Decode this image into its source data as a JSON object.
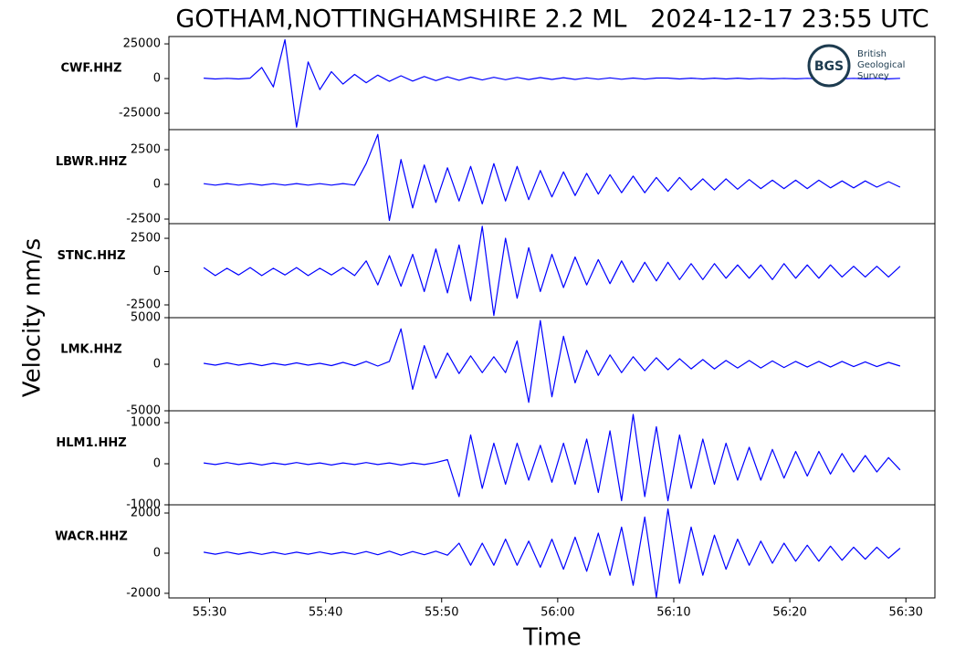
{
  "chart_data": {
    "type": "line",
    "title": "GOTHAM,NOTTINGHAMSHIRE 2.2 ML   2024-12-17 23:55 UTC",
    "xlabel": "Time",
    "ylabel": "Velocity nm/s",
    "color": "#0000ff",
    "xlim": [
      26.5,
      92.5
    ],
    "xticks": [
      {
        "value": 30,
        "label": "55:30"
      },
      {
        "value": 40,
        "label": "55:40"
      },
      {
        "value": 50,
        "label": "55:50"
      },
      {
        "value": 60,
        "label": "56:00"
      },
      {
        "value": 70,
        "label": "56:10"
      },
      {
        "value": 80,
        "label": "56:20"
      },
      {
        "value": 90,
        "label": "56:30"
      }
    ],
    "x": [
      29.5,
      30.5,
      31.5,
      32.5,
      33.5,
      34.5,
      35.5,
      36.5,
      37.5,
      38.5,
      39.5,
      40.5,
      41.5,
      42.5,
      43.5,
      44.5,
      45.5,
      46.5,
      47.5,
      48.5,
      49.5,
      50.5,
      51.5,
      52.5,
      53.5,
      54.5,
      55.5,
      56.5,
      57.5,
      58.5,
      59.5,
      60.5,
      61.5,
      62.5,
      63.5,
      64.5,
      65.5,
      66.5,
      67.5,
      68.5,
      69.5,
      70.5,
      71.5,
      72.5,
      73.5,
      74.5,
      75.5,
      76.5,
      77.5,
      78.5,
      79.5,
      80.5,
      81.5,
      82.5,
      83.5,
      84.5,
      85.5,
      86.5,
      87.5,
      88.5,
      89.5
    ],
    "panels": [
      {
        "name": "CWF.HHZ",
        "ylim": [
          -36800,
          30300
        ],
        "yticks": [
          -25000,
          0,
          25000
        ],
        "values": [
          300,
          -300,
          200,
          -300,
          300,
          8000,
          -6000,
          28000,
          -35000,
          12000,
          -8000,
          5000,
          -4000,
          3000,
          -3000,
          2500,
          -2000,
          2000,
          -1800,
          1500,
          -1500,
          1200,
          -1200,
          1000,
          -1000,
          900,
          -800,
          800,
          -700,
          700,
          -600,
          600,
          -600,
          500,
          -500,
          500,
          -500,
          400,
          -400,
          400,
          400,
          -300,
          300,
          -300,
          300,
          -300,
          300,
          -300,
          200,
          -200,
          200,
          -200,
          200,
          -200,
          200,
          -200,
          200,
          -200,
          200,
          -200,
          200
        ]
      },
      {
        "name": "LBWR.HHZ",
        "ylim": [
          -2830,
          3950
        ],
        "yticks": [
          -2500,
          0,
          2500
        ],
        "values": [
          50,
          -50,
          60,
          -50,
          50,
          -60,
          50,
          -50,
          60,
          -50,
          50,
          -50,
          60,
          -50,
          1500,
          3600,
          -2600,
          1800,
          -1700,
          1400,
          -1300,
          1200,
          -1200,
          1300,
          -1400,
          1500,
          -1200,
          1300,
          -1100,
          1000,
          -900,
          900,
          -800,
          800,
          -700,
          700,
          -600,
          600,
          -600,
          500,
          -500,
          500,
          -400,
          400,
          -400,
          400,
          -350,
          350,
          -300,
          300,
          -300,
          300,
          -300,
          300,
          -250,
          250,
          -250,
          250,
          -200,
          200,
          -200
        ]
      },
      {
        "name": "STNC.HHZ",
        "ylim": [
          -3460,
          3600
        ],
        "yticks": [
          -2500,
          0,
          2500
        ],
        "values": [
          300,
          -300,
          250,
          -250,
          300,
          -300,
          250,
          -250,
          300,
          -300,
          250,
          -250,
          300,
          -300,
          800,
          -1000,
          1200,
          -1100,
          1300,
          -1500,
          1700,
          -1600,
          2000,
          -2200,
          3400,
          -3300,
          2500,
          -2000,
          1800,
          -1500,
          1300,
          -1200,
          1100,
          -1000,
          900,
          -900,
          800,
          -800,
          700,
          -700,
          700,
          -600,
          600,
          -600,
          600,
          -500,
          500,
          -500,
          500,
          -600,
          600,
          -500,
          500,
          -500,
          500,
          -400,
          400,
          -400,
          400,
          -400,
          400
        ]
      },
      {
        "name": "LMK.HHZ",
        "ylim": [
          -5000,
          5000
        ],
        "yticks": [
          -5000,
          0,
          5000
        ],
        "values": [
          100,
          -100,
          150,
          -100,
          100,
          -150,
          100,
          -100,
          150,
          -100,
          100,
          -150,
          200,
          -150,
          300,
          -200,
          300,
          3800,
          -2700,
          2000,
          -1500,
          1200,
          -1000,
          900,
          -900,
          800,
          -900,
          2500,
          -4100,
          4700,
          -3500,
          3000,
          -2000,
          1500,
          -1200,
          1000,
          -900,
          800,
          -700,
          700,
          -600,
          600,
          -500,
          500,
          -500,
          400,
          -400,
          400,
          -400,
          350,
          -350,
          300,
          -300,
          300,
          -300,
          300,
          -250,
          250,
          -250,
          200,
          -200
        ]
      },
      {
        "name": "HLM1.HHZ",
        "ylim": [
          -1000,
          1290
        ],
        "yticks": [
          -1000,
          0,
          1000
        ],
        "values": [
          20,
          -20,
          30,
          -20,
          20,
          -30,
          20,
          -20,
          30,
          -20,
          20,
          -30,
          20,
          -20,
          30,
          -20,
          20,
          -30,
          20,
          -20,
          30,
          100,
          -800,
          700,
          -600,
          500,
          -500,
          500,
          -400,
          450,
          -450,
          500,
          -500,
          600,
          -700,
          800,
          -900,
          1200,
          -800,
          900,
          -900,
          700,
          -600,
          600,
          -500,
          500,
          -400,
          400,
          -400,
          350,
          -350,
          300,
          -300,
          300,
          -250,
          250,
          -200,
          200,
          -200,
          150,
          -150
        ]
      },
      {
        "name": "WACR.HHZ",
        "ylim": [
          -2230,
          2410
        ],
        "yticks": [
          -2000,
          0,
          2000
        ],
        "values": [
          50,
          -50,
          60,
          -50,
          50,
          -60,
          50,
          -60,
          50,
          -50,
          60,
          -50,
          50,
          -60,
          80,
          -80,
          100,
          -100,
          80,
          -80,
          100,
          -100,
          500,
          -600,
          500,
          -600,
          700,
          -600,
          600,
          -700,
          700,
          -800,
          800,
          -900,
          1000,
          -1100,
          1300,
          -1600,
          1800,
          -2200,
          2200,
          -1500,
          1300,
          -1100,
          900,
          -800,
          700,
          -600,
          600,
          -500,
          500,
          -400,
          400,
          -400,
          350,
          -350,
          300,
          -300,
          300,
          -250,
          250
        ]
      }
    ]
  },
  "logo": {
    "mark": "BGS",
    "lines": [
      "British",
      "Geological",
      "Survey"
    ]
  }
}
